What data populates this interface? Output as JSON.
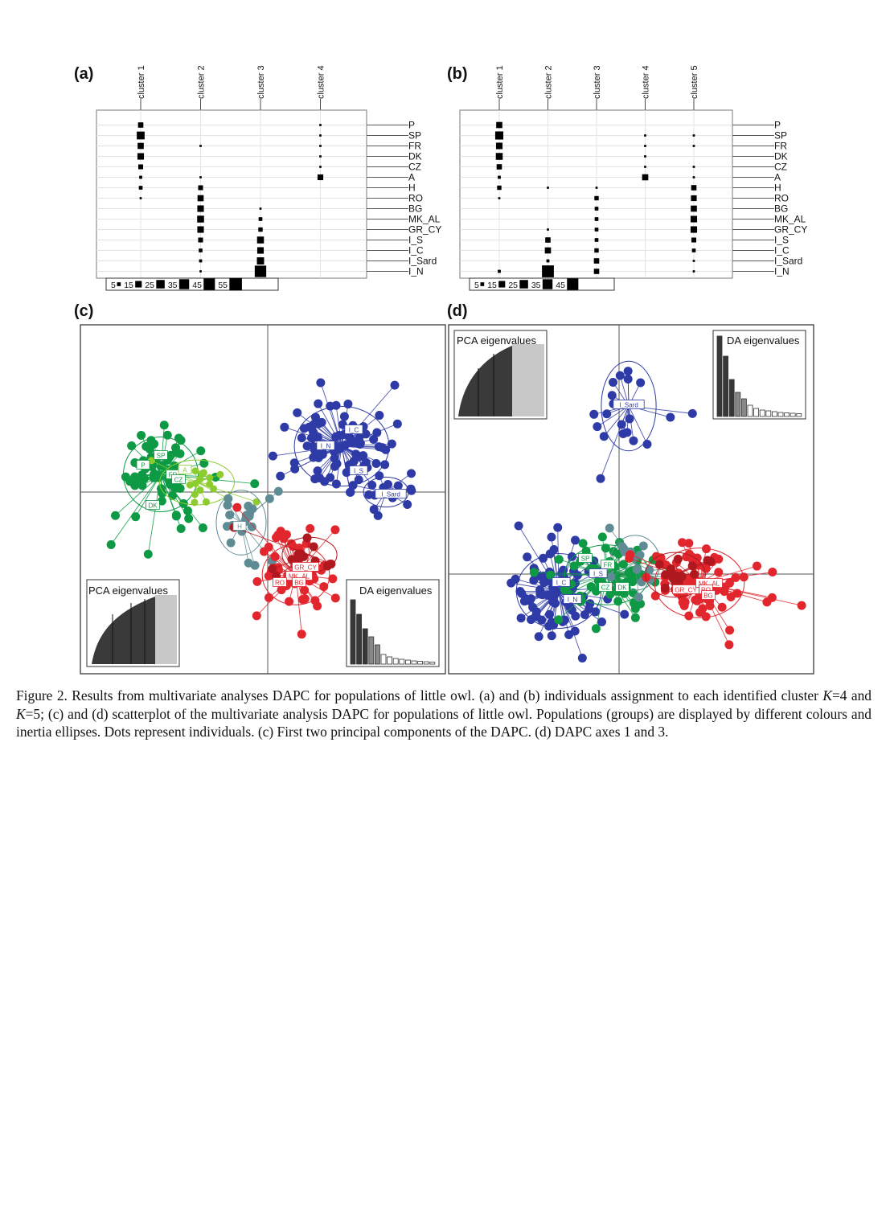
{
  "panels": {
    "a": {
      "label": "(a)",
      "clusters": [
        "cluster 1",
        "cluster 2",
        "cluster 3",
        "cluster 4"
      ],
      "populations": [
        "P",
        "SP",
        "FR",
        "DK",
        "CZ",
        "A",
        "H",
        "RO",
        "BG",
        "MK_AL",
        "GR_CY",
        "I_S",
        "I_C",
        "I_Sard",
        "I_N"
      ],
      "legend": [
        "5",
        "15",
        "25",
        "35",
        "45",
        "55"
      ],
      "assignment_counts": [
        [
          6,
          0,
          0,
          1
        ],
        [
          13,
          0,
          0,
          1
        ],
        [
          8,
          1,
          0,
          1
        ],
        [
          9,
          0,
          0,
          1
        ],
        [
          5,
          0,
          0,
          1
        ],
        [
          2,
          1,
          0,
          7
        ],
        [
          3,
          5,
          0,
          0
        ],
        [
          1,
          8,
          0,
          0
        ],
        [
          0,
          9,
          1,
          0
        ],
        [
          0,
          10,
          3,
          0
        ],
        [
          0,
          9,
          4,
          0
        ],
        [
          0,
          5,
          10,
          0
        ],
        [
          0,
          3,
          9,
          0
        ],
        [
          0,
          2,
          11,
          0
        ],
        [
          0,
          1,
          28,
          0
        ]
      ]
    },
    "b": {
      "label": "(b)",
      "clusters": [
        "cluster 1",
        "cluster 2",
        "cluster 3",
        "cluster 4",
        "cluster 5"
      ],
      "populations": [
        "P",
        "SP",
        "FR",
        "DK",
        "CZ",
        "A",
        "H",
        "RO",
        "BG",
        "MK_AL",
        "GR_CY",
        "I_S",
        "I_C",
        "I_Sard",
        "I_N"
      ],
      "legend": [
        "5",
        "15",
        "25",
        "35",
        "45"
      ],
      "assignment_counts": [
        [
          8,
          0,
          0,
          0,
          0
        ],
        [
          14,
          0,
          0,
          1,
          1
        ],
        [
          9,
          0,
          0,
          1,
          1
        ],
        [
          10,
          0,
          0,
          1,
          0
        ],
        [
          6,
          0,
          0,
          1,
          1
        ],
        [
          2,
          0,
          0,
          8,
          1
        ],
        [
          4,
          1,
          1,
          0,
          6
        ],
        [
          1,
          0,
          4,
          0,
          7
        ],
        [
          0,
          0,
          3,
          0,
          8
        ],
        [
          0,
          0,
          3,
          0,
          9
        ],
        [
          0,
          1,
          3,
          0,
          9
        ],
        [
          0,
          6,
          3,
          0,
          5
        ],
        [
          0,
          8,
          4,
          0,
          3
        ],
        [
          0,
          2,
          6,
          0,
          1
        ],
        [
          2,
          30,
          6,
          0,
          1
        ]
      ]
    },
    "c": {
      "label": "(c)",
      "inset_left_title": "PCA eigenvalues",
      "inset_right_title": "DA eigenvalues",
      "group_labels": [
        "SP",
        "FR",
        "CZ",
        "DK",
        "P",
        "A",
        "H",
        "I_C",
        "I_N",
        "I_S",
        "I_Sard",
        "GR_CY",
        "MK_AL",
        "RO",
        "BG"
      ]
    },
    "d": {
      "label": "(d)",
      "inset_left_title": "PCA eigenvalues",
      "inset_right_title": "DA eigenvalues",
      "group_labels": [
        "I_Sard",
        "SP",
        "FR",
        "I_S",
        "I_C",
        "CZ",
        "DK",
        "I_N",
        "GR_CY",
        "MK_AL",
        "RO",
        "BG"
      ]
    }
  },
  "colors": {
    "green": "#0e9a45",
    "light_green": "#8ccc2e",
    "blue": "#2e3aa6",
    "teal": "#5f8c94",
    "red": "#e2262e",
    "dark_red": "#b0181f",
    "inset_dark": "#383838",
    "inset_light": "#c8c8c8"
  },
  "caption": {
    "part1": "Figure 2. Results from multivariate analyses DAPC for populations of little owl. (a) and (b) individuals assignment to each identified cluster ",
    "k1": "K",
    "part2": "=4 and ",
    "k2": "K",
    "part3": "=5; (c) and (d) scatterplot of the multivariate analysis DAPC for populations of little owl. Populations (groups) are displayed by different colours and inertia ellipses. Dots represent individuals. (c) First two principal components of the DAPC. (d) DAPC axes 1 and 3."
  }
}
